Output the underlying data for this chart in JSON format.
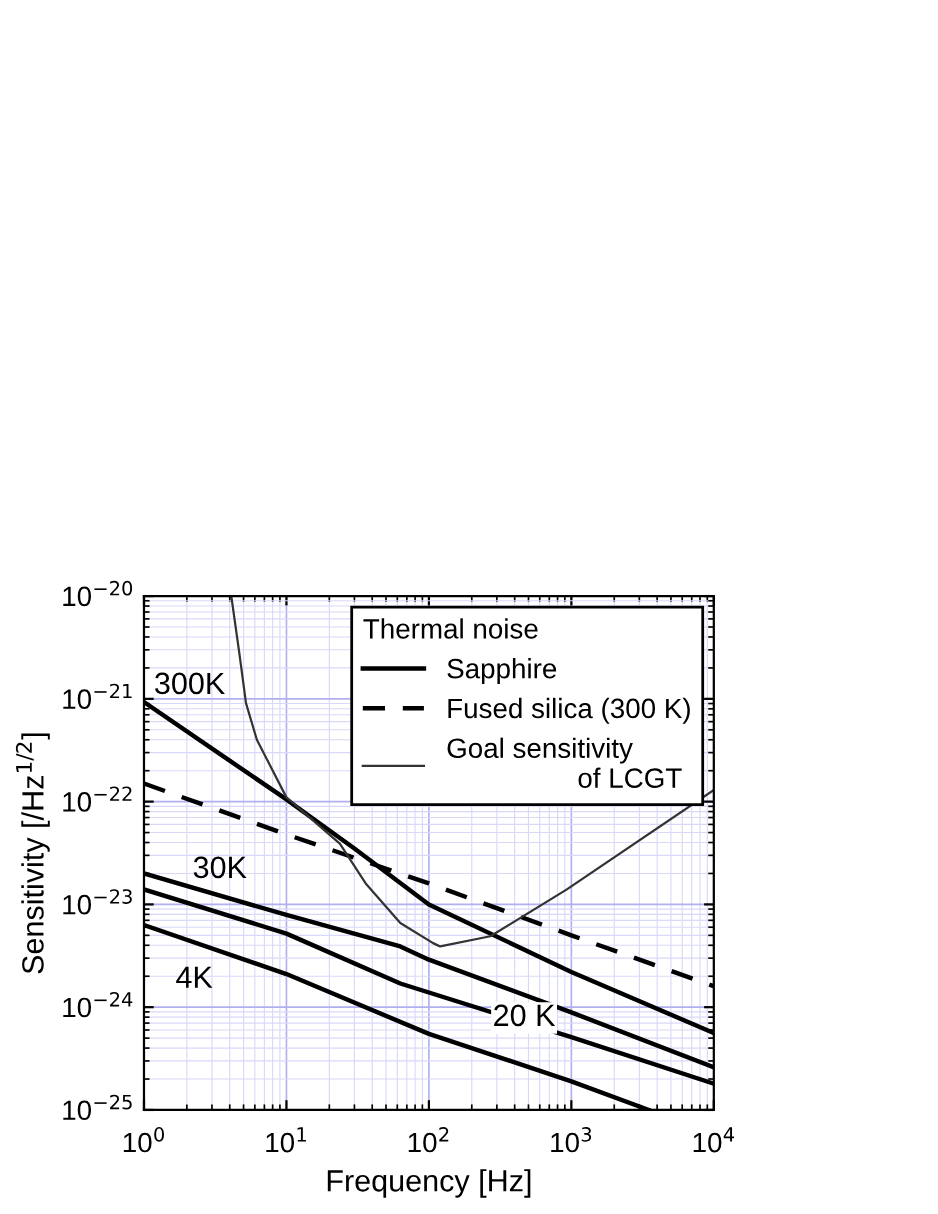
{
  "chart_data": {
    "type": "line",
    "log": "xy",
    "xlabel": "Frequency [Hz]",
    "ylabel": "Sensitivity [/Hz$^{1/2}$]",
    "legend_title": "Thermal noise",
    "legend": "top right",
    "grid": true,
    "xlim": [
      1,
      10000
    ],
    "ylim": [
      1e-25,
      1e-20
    ],
    "xticks": [
      {
        "value": 1,
        "label": "10$^{0}$"
      },
      {
        "value": 10,
        "label": "10$^{1}$"
      },
      {
        "value": 100,
        "label": "10$^{2}$"
      },
      {
        "value": 1000,
        "label": "10$^{3}$"
      },
      {
        "value": 10000,
        "label": "10$^{4}$"
      }
    ],
    "yticks": [
      {
        "value": 1e-25,
        "label": "10$^{−25}$"
      },
      {
        "value": 1e-24,
        "label": "10$^{−24}$"
      },
      {
        "value": 1e-23,
        "label": "10$^{−23}$"
      },
      {
        "value": 1e-22,
        "label": "10$^{−22}$"
      },
      {
        "value": 1e-21,
        "label": "10$^{−21}$"
      },
      {
        "value": 1e-20,
        "label": "10$^{−20}$"
      }
    ],
    "series": [
      {
        "name": "Sapphire",
        "color": "#000000",
        "line_style": "solid",
        "x": [
          1,
          10,
          30,
          100,
          1000,
          10000
        ],
        "values": [
          9.3e-22,
          1.05e-22,
          3.5e-23,
          1e-23,
          2.2e-24,
          5.6e-25
        ]
      },
      {
        "name": "Fused silica (300 K)",
        "color": "#000000",
        "line_style": "dashed",
        "x": [
          1,
          10,
          100,
          1000,
          10000
        ],
        "values": [
          1.5e-22,
          4.8e-23,
          1.6e-23,
          5e-24,
          1.6e-24
        ]
      },
      {
        "name": "Goal sensitivity\n                 of LCGT",
        "color": "#333333",
        "line_style": "solid",
        "x": [
          4.1,
          4.7,
          5.2,
          6.2,
          10,
          23.7,
          36,
          63,
          107,
          120,
          270,
          930,
          10000
        ],
        "values": [
          1e-20,
          2.6e-21,
          9.1e-22,
          4e-22,
          1.1e-22,
          3.9e-23,
          1.6e-23,
          6.6e-24,
          4.2e-24,
          3.9e-24,
          4.9e-24,
          1.4e-23,
          1.3e-22
        ]
      },
      {
        "color": "#000000",
        "line_style": "solid",
        "x": [
          1,
          10,
          63,
          100,
          1000,
          10000
        ],
        "values": [
          2e-23,
          7.9e-24,
          3.9e-24,
          2.9e-24,
          8.9e-25,
          2.6e-25
        ]
      },
      {
        "color": "#000000",
        "line_style": "solid",
        "x": [
          1,
          10,
          63,
          1000,
          10000
        ],
        "values": [
          1.4e-23,
          5.2e-24,
          1.7e-24,
          5.1e-25,
          1.8e-25
        ]
      },
      {
        "color": "#000000",
        "line_style": "solid",
        "x": [
          1,
          10,
          100,
          1000,
          3500
        ],
        "values": [
          6.3e-24,
          2.1e-24,
          5.5e-25,
          1.9e-25,
          1e-25
        ]
      }
    ],
    "annotations": [
      "300K",
      "30K",
      "4K",
      "20 K"
    ]
  }
}
